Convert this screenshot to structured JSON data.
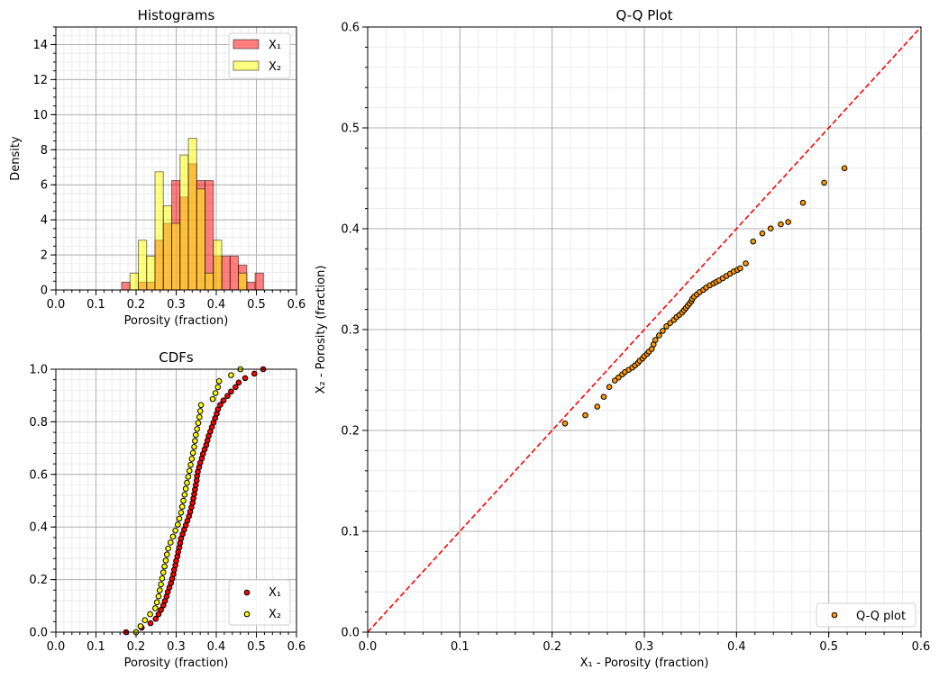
{
  "chart_data": [
    {
      "type": "bar",
      "title": "Histograms",
      "xlabel": "Porosity (fraction)",
      "ylabel": "Density",
      "xlim": [
        0,
        0.6
      ],
      "ylim": [
        0,
        15
      ],
      "xticks": [
        "0.0",
        "0.1",
        "0.2",
        "0.3",
        "0.4",
        "0.5",
        "0.6"
      ],
      "yticks": [
        "0",
        "2",
        "4",
        "6",
        "8",
        "10",
        "12",
        "14"
      ],
      "grid": true,
      "legend_position": "top-right",
      "bin_start": 0.164,
      "bin_width": 0.0208,
      "series": [
        {
          "name": "X₁",
          "color": "#ff0000",
          "values": [
            0.44,
            0,
            0.44,
            0.44,
            2.84,
            3.8,
            6.24,
            5.3,
            7.2,
            6.24,
            6.24,
            1.93,
            1.93,
            1.93,
            1.42,
            0.44,
            0.96
          ]
        },
        {
          "name": "X₂",
          "color": "#ffff00",
          "values": [
            0,
            0.96,
            2.84,
            1.93,
            6.74,
            4.8,
            3.8,
            7.7,
            8.65,
            5.76,
            0.96,
            2.84,
            0,
            0,
            0.96,
            0,
            0
          ]
        }
      ]
    },
    {
      "type": "scatter",
      "title": "CDFs",
      "xlabel": "Porosity (fraction)",
      "ylabel": "",
      "xlim": [
        0,
        0.6
      ],
      "ylim": [
        0,
        1.0
      ],
      "xticks": [
        "0.0",
        "0.1",
        "0.2",
        "0.3",
        "0.4",
        "0.5",
        "0.6"
      ],
      "yticks": [
        "0.0",
        "0.2",
        "0.4",
        "0.6",
        "0.8",
        "1.0"
      ],
      "grid": true,
      "legend_position": "bottom-right",
      "series": [
        {
          "name": "X₁",
          "color": "#ff0000"
        },
        {
          "name": "X₂",
          "color": "#ffff00"
        }
      ]
    },
    {
      "type": "scatter",
      "title": "Q-Q Plot",
      "xlabel": "X₁ - Porosity (fraction)",
      "ylabel": "X₂ - Porosity (fraction)",
      "xlim": [
        0,
        0.6
      ],
      "ylim": [
        0,
        0.6
      ],
      "xticks": [
        "0.0",
        "0.1",
        "0.2",
        "0.3",
        "0.4",
        "0.5",
        "0.6"
      ],
      "yticks": [
        "0.0",
        "0.1",
        "0.2",
        "0.3",
        "0.4",
        "0.5",
        "0.6"
      ],
      "grid": true,
      "legend_position": "bottom-right",
      "legend": "Q-Q plot",
      "point_color": "#ff9900",
      "line_color": "#ff0000"
    }
  ],
  "samples": {
    "x1_sorted": [
      0.175,
      0.214,
      0.236,
      0.249,
      0.256,
      0.262,
      0.268,
      0.272,
      0.276,
      0.279,
      0.283,
      0.287,
      0.29,
      0.293,
      0.295,
      0.298,
      0.3,
      0.303,
      0.305,
      0.308,
      0.31,
      0.312,
      0.316,
      0.32,
      0.324,
      0.328,
      0.332,
      0.335,
      0.338,
      0.341,
      0.343,
      0.345,
      0.347,
      0.349,
      0.351,
      0.352,
      0.354,
      0.357,
      0.36,
      0.364,
      0.367,
      0.371,
      0.375,
      0.378,
      0.381,
      0.385,
      0.389,
      0.393,
      0.397,
      0.401,
      0.404,
      0.41,
      0.418,
      0.428,
      0.437,
      0.448,
      0.456,
      0.472,
      0.495,
      0.517
    ],
    "x2_sorted": [
      0.2,
      0.211,
      0.222,
      0.235,
      0.248,
      0.252,
      0.256,
      0.259,
      0.262,
      0.265,
      0.268,
      0.271,
      0.274,
      0.277,
      0.28,
      0.286,
      0.292,
      0.298,
      0.304,
      0.308,
      0.312,
      0.315,
      0.318,
      0.321,
      0.324,
      0.327,
      0.33,
      0.333,
      0.336,
      0.339,
      0.342,
      0.345,
      0.347,
      0.349,
      0.352,
      0.355,
      0.358,
      0.36,
      0.362,
      0.391,
      0.398,
      0.404,
      0.407,
      0.437,
      0.46
    ]
  }
}
